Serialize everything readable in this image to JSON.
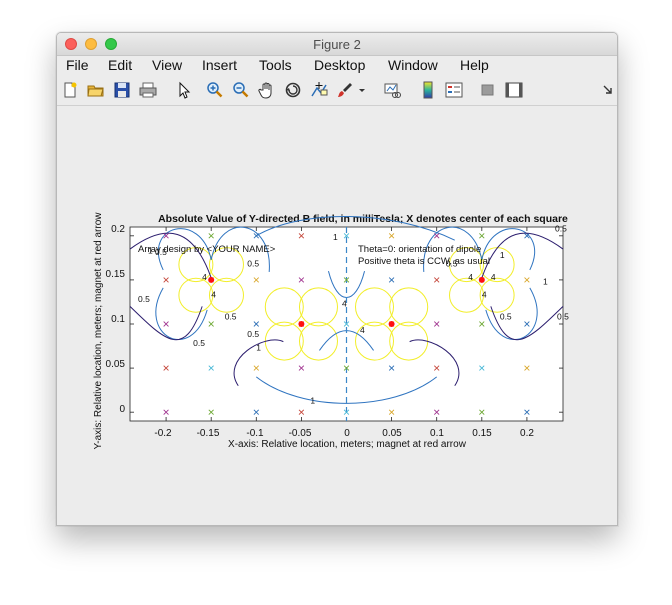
{
  "window": {
    "title": "Figure 2"
  },
  "menubar": {
    "items": [
      "File",
      "Edit",
      "View",
      "Insert",
      "Tools",
      "Desktop",
      "Window",
      "Help"
    ]
  },
  "toolbar": {
    "icons": [
      "new-figure-icon",
      "open-file-icon",
      "save-icon",
      "print-icon",
      "pointer-icon",
      "zoom-in-icon",
      "zoom-out-icon",
      "pan-hand-icon",
      "rotate-3d-icon",
      "data-cursor-icon",
      "brush-icon",
      "brush-dropdown-icon",
      "link-plot-icon",
      "colorbar-icon",
      "legend-icon",
      "hide-plot-tools-icon",
      "show-plot-tools-icon",
      "dock-arrow-icon"
    ]
  },
  "plot": {
    "title": "Absolute Value of Y-directed B field, in milliTesla;  X denotes center of each square",
    "xlabel": "X-axis: Relative location, meters;  magnet at red arrow",
    "ylabel": "Y-axis: Relative location, meters;  magnet at red arrow",
    "annotation_left": "Array design by <YOUR NAME>",
    "annotation_right_1": "Theta=0: orientation of dipole",
    "annotation_right_2": "Positive theta is CCW, as usual",
    "x_ticks": [
      "-0.2",
      "-0.15",
      "-0.1",
      "-0.05",
      "0",
      "0.05",
      "0.1",
      "0.15",
      "0.2"
    ],
    "y_ticks": [
      "0",
      "0.05",
      "0.1",
      "0.15",
      "0.2"
    ],
    "contour_labels": [
      "0.5",
      "0.5",
      "0.5",
      "0.5",
      "0.5",
      "0.5",
      "0.5",
      "0.5",
      "0.5",
      "0.5",
      "1",
      "1",
      "1",
      "1",
      "1",
      "1",
      "4",
      "4",
      "4",
      "4",
      "4",
      "4",
      "4"
    ]
  },
  "chart_data": {
    "type": "contour",
    "title": "Absolute Value of Y-directed B field, in milliTesla;  X denotes center of each square",
    "xlabel": "X-axis: Relative location, meters;  magnet at red arrow",
    "ylabel": "Y-axis: Relative location, meters;  magnet at red arrow",
    "xlim": [
      -0.24,
      0.24
    ],
    "ylim": [
      -0.01,
      0.21
    ],
    "contour_levels": [
      0.5,
      1,
      4
    ],
    "level_colors": {
      "0.5": "#2c1e6e",
      "1": "#2f74c0",
      "4": "#f2ee2a"
    },
    "magnets": [
      {
        "x": -0.15,
        "y": 0.15
      },
      {
        "x": 0.15,
        "y": 0.15
      },
      {
        "x": -0.05,
        "y": 0.1
      },
      {
        "x": 0.05,
        "y": 0.1
      }
    ],
    "square_centers_x": [
      -0.2,
      -0.15,
      -0.1,
      -0.05,
      0,
      0.05,
      0.1,
      0.15,
      0.2
    ],
    "square_centers_y": [
      0,
      0.05,
      0.1,
      0.15,
      0.2
    ],
    "dashed_line_x": 0
  }
}
